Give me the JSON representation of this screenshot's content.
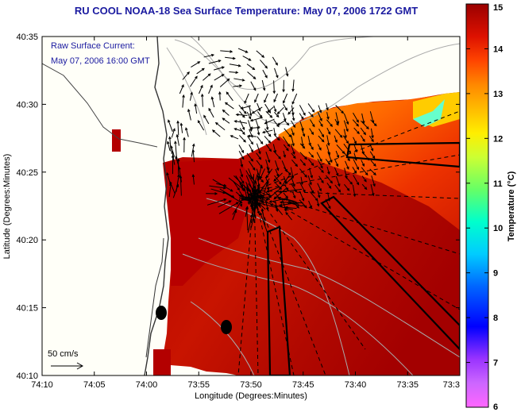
{
  "title": "RU COOL  NOAA-18  Sea Surface Temperature:  May 07, 2006 1722 GMT",
  "overlay": {
    "line1": "Raw Surface Current:",
    "line2": "May 07, 2006 16:00 GMT"
  },
  "scale_label": "50 cm/s",
  "x_axis": {
    "label": "Longitude (Degrees:Minutes)",
    "ticks": [
      "74:10",
      "74:05",
      "74:00",
      "73:55",
      "73:50",
      "73:45",
      "73:40",
      "73:35",
      "73:3"
    ]
  },
  "y_axis": {
    "label": "Latitude (Degrees:Minutes)",
    "ticks": [
      "40:35",
      "40:30",
      "40:25",
      "40:20",
      "40:15",
      "40:10"
    ]
  },
  "colorbar": {
    "label": "Temperature (°C)",
    "ticks": [
      "15",
      "14",
      "13",
      "12",
      "11",
      "10",
      "9",
      "8",
      "7",
      "6"
    ],
    "min": 6,
    "max": 15,
    "colors": [
      "#ff66ff",
      "#9933ff",
      "#0000ff",
      "#0099ff",
      "#00ffff",
      "#33ff99",
      "#99ff33",
      "#ffff00",
      "#ffcc00",
      "#ff9900",
      "#ff5500",
      "#e01000",
      "#b80000",
      "#990000"
    ]
  }
}
